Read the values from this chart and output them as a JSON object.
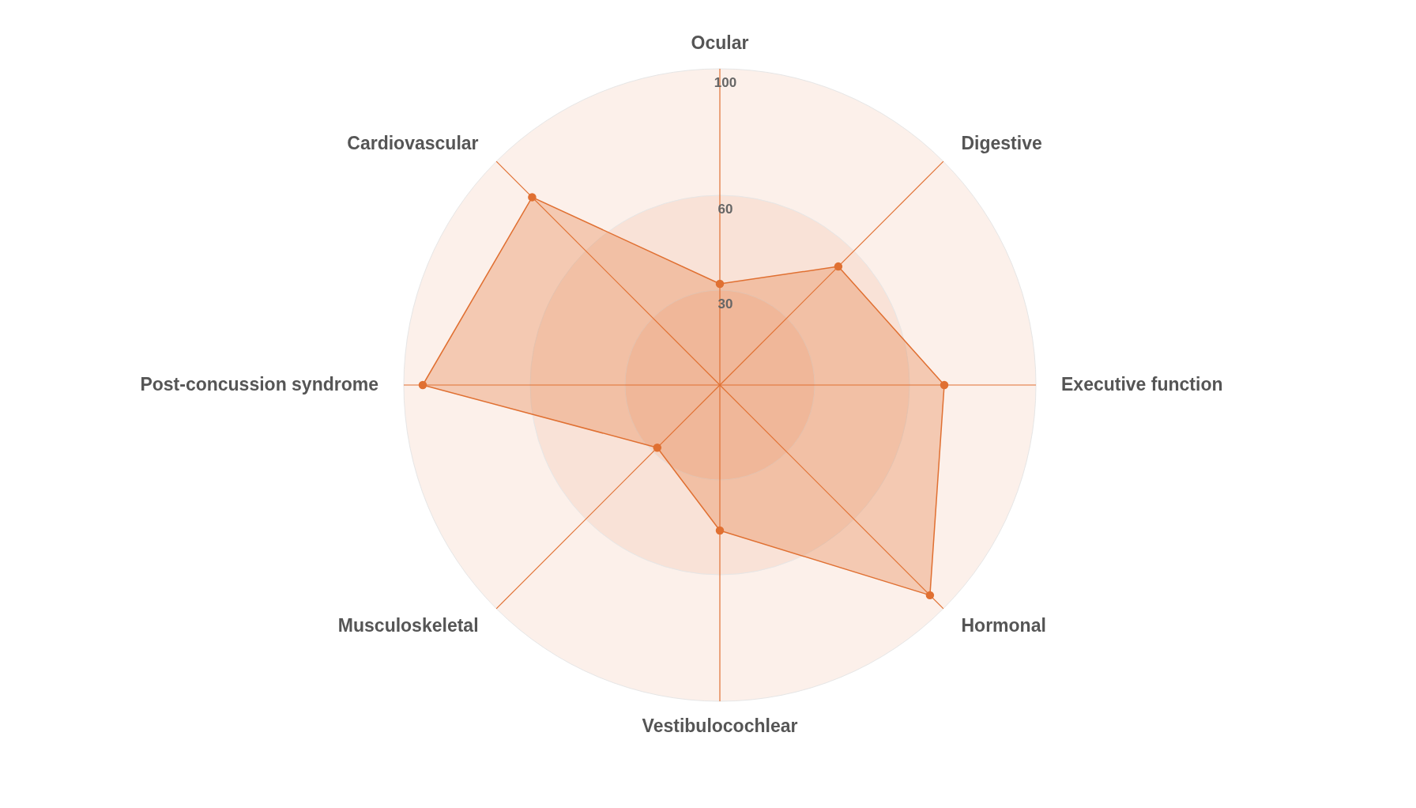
{
  "chart_data": {
    "type": "radar",
    "categories": [
      "Ocular",
      "Digestive",
      "Executive function",
      "Hormonal",
      "Vestibulocochlear",
      "Musculoskeletal",
      "Post-concussion syndrome",
      "Cardiovascular"
    ],
    "series": [
      {
        "color": "#e07032",
        "values": [
          32,
          53,
          71,
          94,
          46,
          28,
          94,
          84
        ]
      }
    ],
    "ylim": [
      0,
      100
    ],
    "yticks": [
      30,
      60,
      100
    ],
    "grid": true,
    "marker": "circle"
  }
}
